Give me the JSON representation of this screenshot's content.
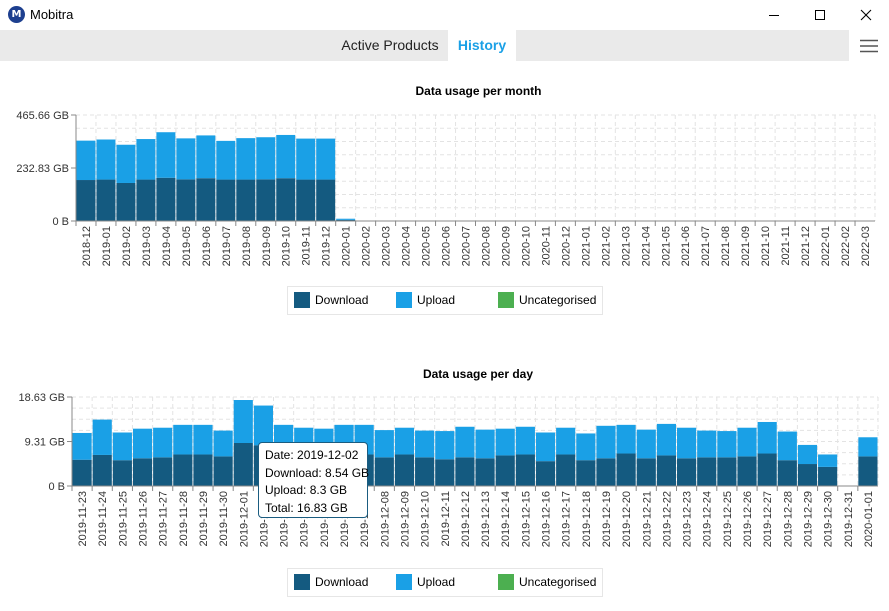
{
  "window": {
    "title": "Mobitra"
  },
  "tabs": [
    {
      "label": "Active Products"
    },
    {
      "label": "History"
    }
  ],
  "colors": {
    "download": "#145a80",
    "upload": "#1aa0e6",
    "uncategorised": "#4caf50",
    "grid": "#e3e3e3"
  },
  "legend": {
    "download": "Download",
    "upload": "Upload",
    "uncategorised": "Uncategorised"
  },
  "tooltip": {
    "date": "Date: 2019-12-02",
    "download": "Download: 8.54 GB",
    "upload": "Upload: 8.3 GB",
    "total": "Total: 16.83 GB"
  },
  "chart_data": [
    {
      "type": "bar",
      "title": "Data usage per month",
      "ylim": [
        0,
        465.66
      ],
      "yticks": [
        0,
        232.83,
        465.66
      ],
      "ytick_labels": [
        "0 B",
        "232.83 GB",
        "465.66 GB"
      ],
      "categories": [
        "2018-12",
        "2019-01",
        "2019-02",
        "2019-03",
        "2019-04",
        "2019-05",
        "2019-06",
        "2019-07",
        "2019-08",
        "2019-09",
        "2019-10",
        "2019-11",
        "2019-12",
        "2020-01",
        "2020-02",
        "2020-03",
        "2020-04",
        "2020-05",
        "2020-06",
        "2020-07",
        "2020-08",
        "2020-09",
        "2020-10",
        "2020-11",
        "2020-12",
        "2021-01",
        "2021-02",
        "2021-03",
        "2021-04",
        "2021-05",
        "2021-06",
        "2021-07",
        "2021-08",
        "2021-09",
        "2021-10",
        "2021-11",
        "2021-12",
        "2022-01",
        "2022-02",
        "2022-03"
      ],
      "stacked": true,
      "series": [
        {
          "name": "Download",
          "values": [
            180,
            182,
            167,
            182,
            190,
            183,
            188,
            182,
            182,
            183,
            188,
            182,
            182,
            5,
            0,
            0,
            0,
            0,
            0,
            0,
            0,
            0,
            0,
            0,
            0,
            0,
            0,
            0,
            0,
            0,
            0,
            0,
            0,
            0,
            0,
            0,
            0,
            0,
            0,
            0
          ]
        },
        {
          "name": "Upload",
          "values": [
            173,
            176,
            168,
            178,
            200,
            180,
            188,
            170,
            182,
            185,
            190,
            180,
            180,
            5,
            0,
            0,
            0,
            0,
            0,
            0,
            0,
            0,
            0,
            0,
            0,
            0,
            0,
            0,
            0,
            0,
            0,
            0,
            0,
            0,
            0,
            0,
            0,
            0,
            0,
            0
          ]
        },
        {
          "name": "Uncategorised",
          "values": [
            0,
            0,
            0,
            0,
            0,
            0,
            0,
            0,
            0,
            0,
            0,
            0,
            0,
            0,
            0,
            0,
            0,
            0,
            0,
            0,
            0,
            0,
            0,
            0,
            0,
            0,
            0,
            0,
            0,
            0,
            0,
            0,
            0,
            0,
            0,
            0,
            0,
            0,
            0,
            0
          ]
        }
      ],
      "grid": true,
      "legend_position": "bottom"
    },
    {
      "type": "bar",
      "title": "Data usage per day",
      "ylim": [
        0,
        18.63
      ],
      "yticks": [
        0,
        9.31,
        18.63
      ],
      "ytick_labels": [
        "0 B",
        "9.31 GB",
        "18.63 GB"
      ],
      "categories": [
        "2019-11-23",
        "2019-11-24",
        "2019-11-25",
        "2019-11-26",
        "2019-11-27",
        "2019-11-28",
        "2019-11-29",
        "2019-11-30",
        "2019-12-01",
        "2019-12-02",
        "2019-12-03",
        "2019-12-04",
        "2019-12-05",
        "2019-12-06",
        "2019-12-07",
        "2019-12-08",
        "2019-12-09",
        "2019-12-10",
        "2019-12-11",
        "2019-12-12",
        "2019-12-13",
        "2019-12-14",
        "2019-12-15",
        "2019-12-16",
        "2019-12-17",
        "2019-12-18",
        "2019-12-19",
        "2019-12-20",
        "2019-12-21",
        "2019-12-22",
        "2019-12-23",
        "2019-12-24",
        "2019-12-25",
        "2019-12-26",
        "2019-12-27",
        "2019-12-28",
        "2019-12-29",
        "2019-12-30",
        "2019-12-31",
        "2020-01-01"
      ],
      "stacked": true,
      "series": [
        {
          "name": "Download",
          "values": [
            5.5,
            6.5,
            5.4,
            5.8,
            6.0,
            6.6,
            6.6,
            6.2,
            9.0,
            8.54,
            6.7,
            6.2,
            6.0,
            6.6,
            6.6,
            6.0,
            6.6,
            6.0,
            5.6,
            6.0,
            5.8,
            6.4,
            6.6,
            5.2,
            6.6,
            5.4,
            5.8,
            6.8,
            5.8,
            6.4,
            5.8,
            6.0,
            6.0,
            6.2,
            6.8,
            5.4,
            4.6,
            4.0,
            0,
            6.2
          ]
        },
        {
          "name": "Upload",
          "values": [
            5.6,
            7.4,
            5.8,
            6.2,
            6.2,
            6.2,
            6.2,
            5.4,
            9.0,
            8.3,
            6.1,
            6.0,
            6.0,
            6.2,
            6.2,
            5.7,
            5.6,
            5.6,
            5.9,
            6.4,
            6.0,
            5.6,
            5.8,
            6.0,
            5.6,
            5.6,
            6.8,
            6.0,
            6.0,
            6.6,
            6.4,
            5.6,
            5.5,
            6.0,
            6.6,
            6.0,
            4.0,
            2.6,
            0,
            4.0
          ]
        },
        {
          "name": "Uncategorised",
          "values": [
            0,
            0,
            0,
            0,
            0,
            0,
            0,
            0,
            0,
            0,
            0,
            0,
            0,
            0,
            0,
            0,
            0,
            0,
            0,
            0,
            0,
            0,
            0,
            0,
            0,
            0,
            0,
            0,
            0,
            0,
            0,
            0,
            0,
            0,
            0,
            0,
            0,
            0,
            0,
            0
          ]
        }
      ],
      "grid": true,
      "legend_position": "bottom"
    }
  ]
}
